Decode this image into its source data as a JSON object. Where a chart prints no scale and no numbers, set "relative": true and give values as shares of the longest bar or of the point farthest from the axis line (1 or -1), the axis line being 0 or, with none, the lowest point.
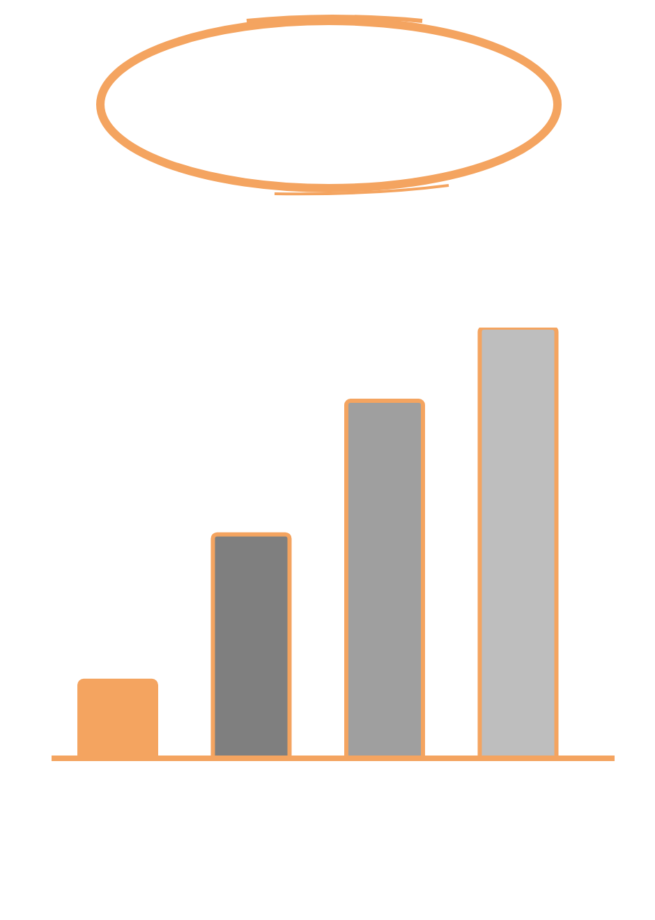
{
  "chart_data": {
    "type": "bar",
    "categories": [
      null,
      null,
      null,
      null
    ],
    "values": [
      0.18,
      0.52,
      0.83,
      1
    ],
    "colors": [
      "#f4a460",
      "#7f7f7f",
      "#9f9f9f",
      "#bebebe"
    ],
    "relative": true
  }
}
